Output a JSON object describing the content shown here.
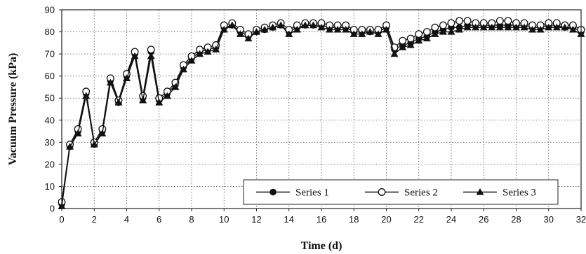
{
  "chart_data": {
    "type": "line",
    "xlabel": "Time (d)",
    "ylabel": "Vacuum Pressure (kPa)",
    "xlim": [
      0,
      32
    ],
    "ylim": [
      0,
      90
    ],
    "x_ticks": [
      0,
      2,
      4,
      6,
      8,
      10,
      12,
      14,
      16,
      18,
      20,
      22,
      24,
      26,
      28,
      30,
      32
    ],
    "y_ticks": [
      0,
      10,
      20,
      30,
      40,
      50,
      60,
      70,
      80,
      90
    ],
    "grid": "dotted",
    "legend_position": "bottom-right",
    "series": [
      {
        "name": "Series 1",
        "marker": "filled-circle",
        "x": [
          0,
          0.5,
          1,
          1.5,
          2,
          2.5,
          3,
          3.5,
          4,
          4.5,
          5,
          5.5,
          6,
          6.5,
          7,
          7.5,
          8,
          8.5,
          9,
          9.5,
          10,
          10.5,
          11,
          11.5,
          12,
          12.5,
          13,
          13.5,
          14,
          14.5,
          15,
          15.5,
          16,
          16.5,
          17,
          17.5,
          18,
          18.5,
          19,
          19.5,
          20,
          20.5,
          21,
          21.5,
          22,
          22.5,
          23,
          23.5,
          24,
          24.5,
          25,
          25.5,
          26,
          26.5,
          27,
          27.5,
          28,
          28.5,
          29,
          29.5,
          30,
          30.5,
          31,
          31.5,
          32
        ],
        "values": [
          2,
          28,
          35,
          52,
          29,
          35,
          58,
          48,
          60,
          70,
          50,
          71,
          49,
          52,
          56,
          64,
          68,
          71,
          72,
          73,
          82,
          83,
          80,
          78,
          80,
          81,
          82,
          83,
          80,
          82,
          83,
          83,
          83,
          82,
          82,
          82,
          80,
          80,
          80,
          80,
          82,
          72,
          74,
          75,
          77,
          78,
          80,
          81,
          82,
          82,
          83,
          83,
          83,
          83,
          83,
          83,
          83,
          83,
          82,
          82,
          83,
          83,
          82,
          82,
          80
        ]
      },
      {
        "name": "Series 2",
        "marker": "open-circle",
        "x": [
          0,
          0.5,
          1,
          1.5,
          2,
          2.5,
          3,
          3.5,
          4,
          4.5,
          5,
          5.5,
          6,
          6.5,
          7,
          7.5,
          8,
          8.5,
          9,
          9.5,
          10,
          10.5,
          11,
          11.5,
          12,
          12.5,
          13,
          13.5,
          14,
          14.5,
          15,
          15.5,
          16,
          16.5,
          17,
          17.5,
          18,
          18.5,
          19,
          19.5,
          20,
          20.5,
          21,
          21.5,
          22,
          22.5,
          23,
          23.5,
          24,
          24.5,
          25,
          25.5,
          26,
          26.5,
          27,
          27.5,
          28,
          28.5,
          29,
          29.5,
          30,
          30.5,
          31,
          31.5,
          32
        ],
        "values": [
          3,
          29,
          36,
          53,
          30,
          36,
          59,
          49,
          61,
          71,
          51,
          72,
          50,
          53,
          57,
          65,
          69,
          72,
          73,
          74,
          83,
          84,
          81,
          79,
          81,
          82,
          83,
          84,
          81,
          83,
          84,
          84,
          84,
          83,
          83,
          83,
          81,
          81,
          81,
          81,
          83,
          73,
          76,
          77,
          79,
          80,
          82,
          83,
          84,
          85,
          85,
          84,
          84,
          84,
          85,
          85,
          84,
          84,
          83,
          83,
          84,
          84,
          83,
          83,
          81
        ]
      },
      {
        "name": "Series 3",
        "marker": "filled-triangle",
        "x": [
          0,
          0.5,
          1,
          1.5,
          2,
          2.5,
          3,
          3.5,
          4,
          4.5,
          5,
          5.5,
          6,
          6.5,
          7,
          7.5,
          8,
          8.5,
          9,
          9.5,
          10,
          10.5,
          11,
          11.5,
          12,
          12.5,
          13,
          13.5,
          14,
          14.5,
          15,
          15.5,
          16,
          16.5,
          17,
          17.5,
          18,
          18.5,
          19,
          19.5,
          20,
          20.5,
          21,
          21.5,
          22,
          22.5,
          23,
          23.5,
          24,
          24.5,
          25,
          25.5,
          26,
          26.5,
          27,
          27.5,
          28,
          28.5,
          29,
          29.5,
          30,
          30.5,
          31,
          31.5,
          32
        ],
        "values": [
          1,
          28,
          34,
          51,
          29,
          34,
          57,
          48,
          59,
          69,
          49,
          69,
          48,
          51,
          55,
          63,
          67,
          70,
          71,
          72,
          81,
          83,
          79,
          77,
          80,
          81,
          82,
          83,
          79,
          81,
          83,
          83,
          82,
          81,
          81,
          81,
          79,
          79,
          80,
          79,
          81,
          70,
          73,
          74,
          76,
          77,
          79,
          80,
          80,
          81,
          82,
          82,
          82,
          82,
          82,
          82,
          82,
          82,
          81,
          81,
          82,
          82,
          82,
          81,
          79
        ]
      }
    ],
    "colors": {
      "line": "#111111",
      "grid": "#555555",
      "background": "#ffffff"
    }
  }
}
